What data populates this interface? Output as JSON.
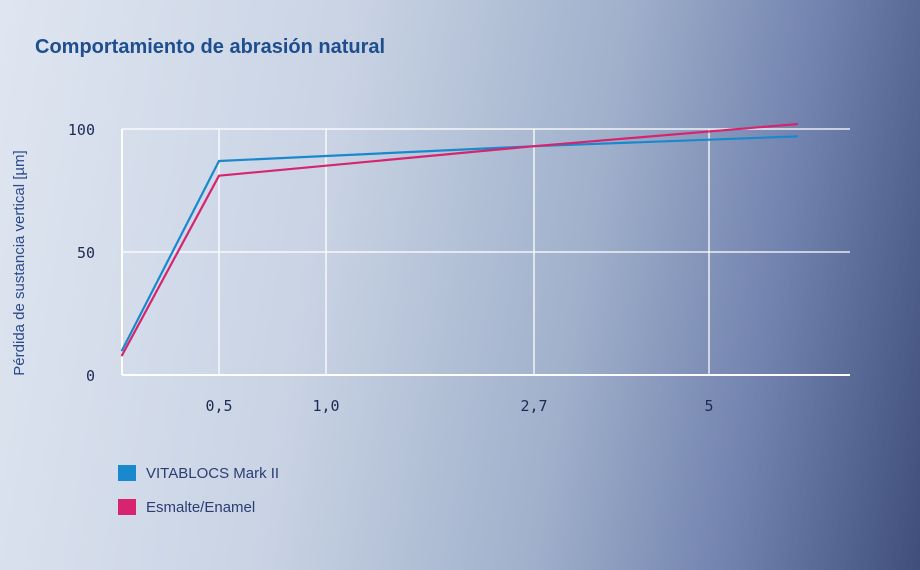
{
  "chart_data": {
    "type": "line",
    "title": "Comportamiento de abrasión natural",
    "ylabel": "Pérdida de sustancia vertical [µm]",
    "xlabel": "",
    "ylim": [
      0,
      100
    ],
    "y_ticks": [
      {
        "value": 0,
        "label": "0"
      },
      {
        "value": 50,
        "label": "50"
      },
      {
        "value": 100,
        "label": "100"
      }
    ],
    "x_ticks": [
      {
        "value": 0.5,
        "label": "0,5"
      },
      {
        "value": 1.0,
        "label": "1,0"
      },
      {
        "value": 2.7,
        "label": "2,7"
      },
      {
        "value": 5,
        "label": "5"
      }
    ],
    "grid": true,
    "legend_position": "bottom-left",
    "series": [
      {
        "name": "VITABLOCS Mark II",
        "color": "#1a88cc",
        "points": [
          [
            0,
            10
          ],
          [
            0.5,
            87
          ],
          [
            2.7,
            93
          ],
          [
            6.5,
            97
          ]
        ]
      },
      {
        "name": "Esmalte/Enamel",
        "color": "#d6246e",
        "points": [
          [
            0,
            8
          ],
          [
            0.5,
            81
          ],
          [
            2.7,
            93
          ],
          [
            6.5,
            102
          ]
        ]
      }
    ]
  }
}
